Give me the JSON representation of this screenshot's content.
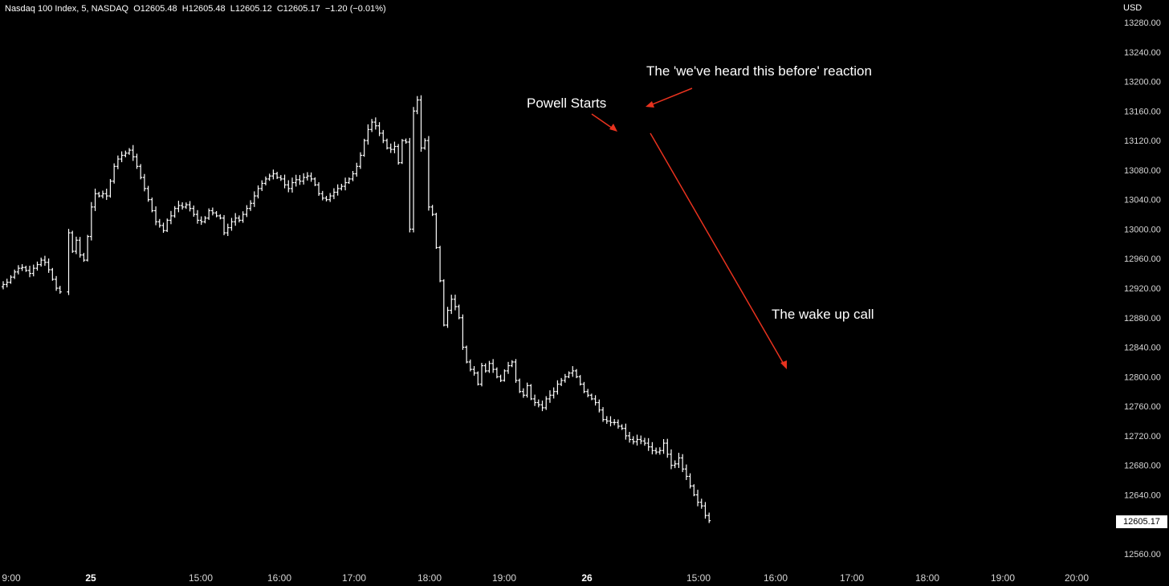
{
  "header": {
    "symbol": "Nasdaq 100 Index, 5, NASDAQ",
    "open": "O12605.48",
    "high": "H12605.48",
    "low": "L12605.12",
    "close": "C12605.17",
    "change": "−1.20 (−0.01%)"
  },
  "currency": "USD",
  "last_price_label": "12605.17",
  "chart_data": {
    "type": "ohlc",
    "title": "Nasdaq 100 Index, 5, NASDAQ",
    "ylabel": "USD",
    "ylim": [
      12545,
      13285
    ],
    "y_ticks": [
      12560,
      12600,
      12640,
      12680,
      12720,
      12760,
      12800,
      12840,
      12880,
      12920,
      12960,
      13000,
      13040,
      13080,
      13120,
      13160,
      13200,
      13240,
      13280
    ],
    "x_ticks": [
      {
        "label": "9:00",
        "bold": false
      },
      {
        "label": "25",
        "bold": true
      },
      {
        "label": "15:00",
        "bold": false
      },
      {
        "label": "16:00",
        "bold": false
      },
      {
        "label": "17:00",
        "bold": false
      },
      {
        "label": "18:00",
        "bold": false
      },
      {
        "label": "19:00",
        "bold": false
      },
      {
        "label": "26",
        "bold": true
      },
      {
        "label": "15:00",
        "bold": false
      },
      {
        "label": "16:00",
        "bold": false
      },
      {
        "label": "17:00",
        "bold": false
      },
      {
        "label": "18:00",
        "bold": false
      },
      {
        "label": "19:00",
        "bold": false
      },
      {
        "label": "20:00",
        "bold": false
      }
    ],
    "closes": [
      12925,
      12928,
      12935,
      12942,
      12947,
      12948,
      12944,
      12940,
      12947,
      12952,
      12958,
      12955,
      12945,
      12932,
      12920,
      12915,
      12995,
      12970,
      12985,
      12965,
      12958,
      12990,
      13030,
      13048,
      13045,
      13048,
      13045,
      13065,
      13085,
      13095,
      13100,
      13103,
      13107,
      13098,
      13085,
      13070,
      13055,
      13040,
      13025,
      13010,
      13005,
      12998,
      13012,
      13018,
      13028,
      13032,
      13030,
      13033,
      13028,
      13020,
      13012,
      13010,
      13015,
      13025,
      13022,
      13018,
      13015,
      12995,
      13002,
      13010,
      13015,
      13012,
      13020,
      13028,
      13035,
      13045,
      13055,
      13062,
      13068,
      13072,
      13075,
      13070,
      13068,
      13060,
      13055,
      13063,
      13067,
      13065,
      13070,
      13072,
      13068,
      13060,
      13048,
      13042,
      13040,
      13045,
      13050,
      13055,
      13058,
      13063,
      13068,
      13075,
      13085,
      13100,
      13120,
      13135,
      13145,
      13140,
      13130,
      13120,
      13110,
      13108,
      13112,
      13090,
      13120,
      13118,
      13000,
      13160,
      13175,
      13110,
      13120,
      13030,
      13020,
      12975,
      12930,
      12870,
      12890,
      12905,
      12895,
      12880,
      12840,
      12820,
      12810,
      12805,
      12790,
      12815,
      12808,
      12818,
      12810,
      12800,
      12795,
      12808,
      12815,
      12820,
      12795,
      12780,
      12775,
      12788,
      12770,
      12765,
      12762,
      12758,
      12770,
      12775,
      12780,
      12790,
      12795,
      12800,
      12805,
      12808,
      12800,
      12790,
      12780,
      12775,
      12770,
      12765,
      12755,
      12742,
      12740,
      12738,
      12738,
      12733,
      12730,
      12720,
      12715,
      12712,
      12715,
      12713,
      12710,
      12705,
      12700,
      12698,
      12700,
      12710,
      12695,
      12680,
      12682,
      12690,
      12675,
      12665,
      12652,
      12640,
      12630,
      12625,
      12612,
      12605
    ],
    "session_gap_after_index": 15,
    "annotations": [
      {
        "text": "Powell Starts"
      },
      {
        "text": "The 'we've heard this before' reaction"
      },
      {
        "text": "The wake up call"
      }
    ],
    "grid": false
  },
  "colors": {
    "background": "#000000",
    "bar": "#ffffff",
    "arrow": "#e8321e",
    "axis_text": "#d6d6d6"
  }
}
